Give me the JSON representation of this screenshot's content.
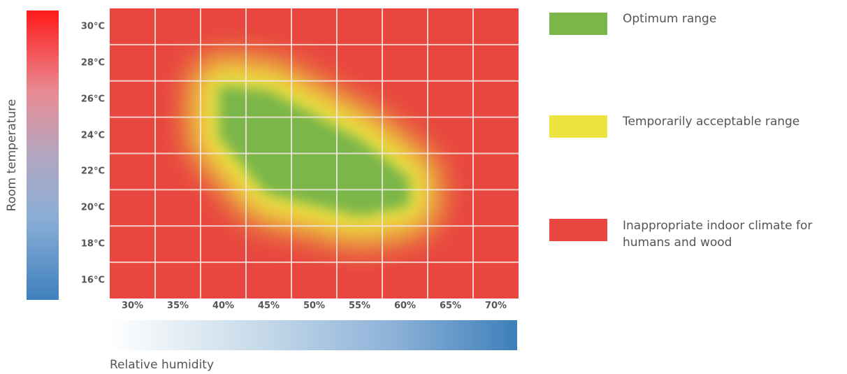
{
  "chart_data": {
    "type": "heatmap",
    "title": "",
    "xlabel": "Relative humidity",
    "ylabel": "Room temperature",
    "x_ticks": [
      "30%",
      "35%",
      "40%",
      "45%",
      "50%",
      "55%",
      "60%",
      "65%",
      "70%"
    ],
    "y_ticks": [
      "30°C",
      "28°C",
      "26°C",
      "24°C",
      "22°C",
      "20°C",
      "18°C",
      "16°C"
    ],
    "x_range": [
      27.5,
      72.5
    ],
    "y_range": [
      15,
      31
    ],
    "zones": {
      "optimum": {
        "center": [
          48,
          23
        ],
        "polygon": [
          [
            40,
            26.5
          ],
          [
            45,
            26.2
          ],
          [
            55,
            23.5
          ],
          [
            60,
            21.5
          ],
          [
            60,
            20.3
          ],
          [
            55,
            19.8
          ],
          [
            45,
            21
          ],
          [
            40,
            24
          ]
        ]
      }
    },
    "legend": [
      {
        "label": "Optimum range",
        "color": "#7ab648"
      },
      {
        "label": "Temporarily acceptable range",
        "color": "#ece341"
      },
      {
        "label": "Inappropriate indoor climate for\nhumans and wood",
        "color": "#e8463f"
      }
    ],
    "colors": {
      "red": "#e8463f",
      "yellow": "#ece341",
      "green": "#7ab648",
      "grid": "#f3e6e0"
    }
  }
}
